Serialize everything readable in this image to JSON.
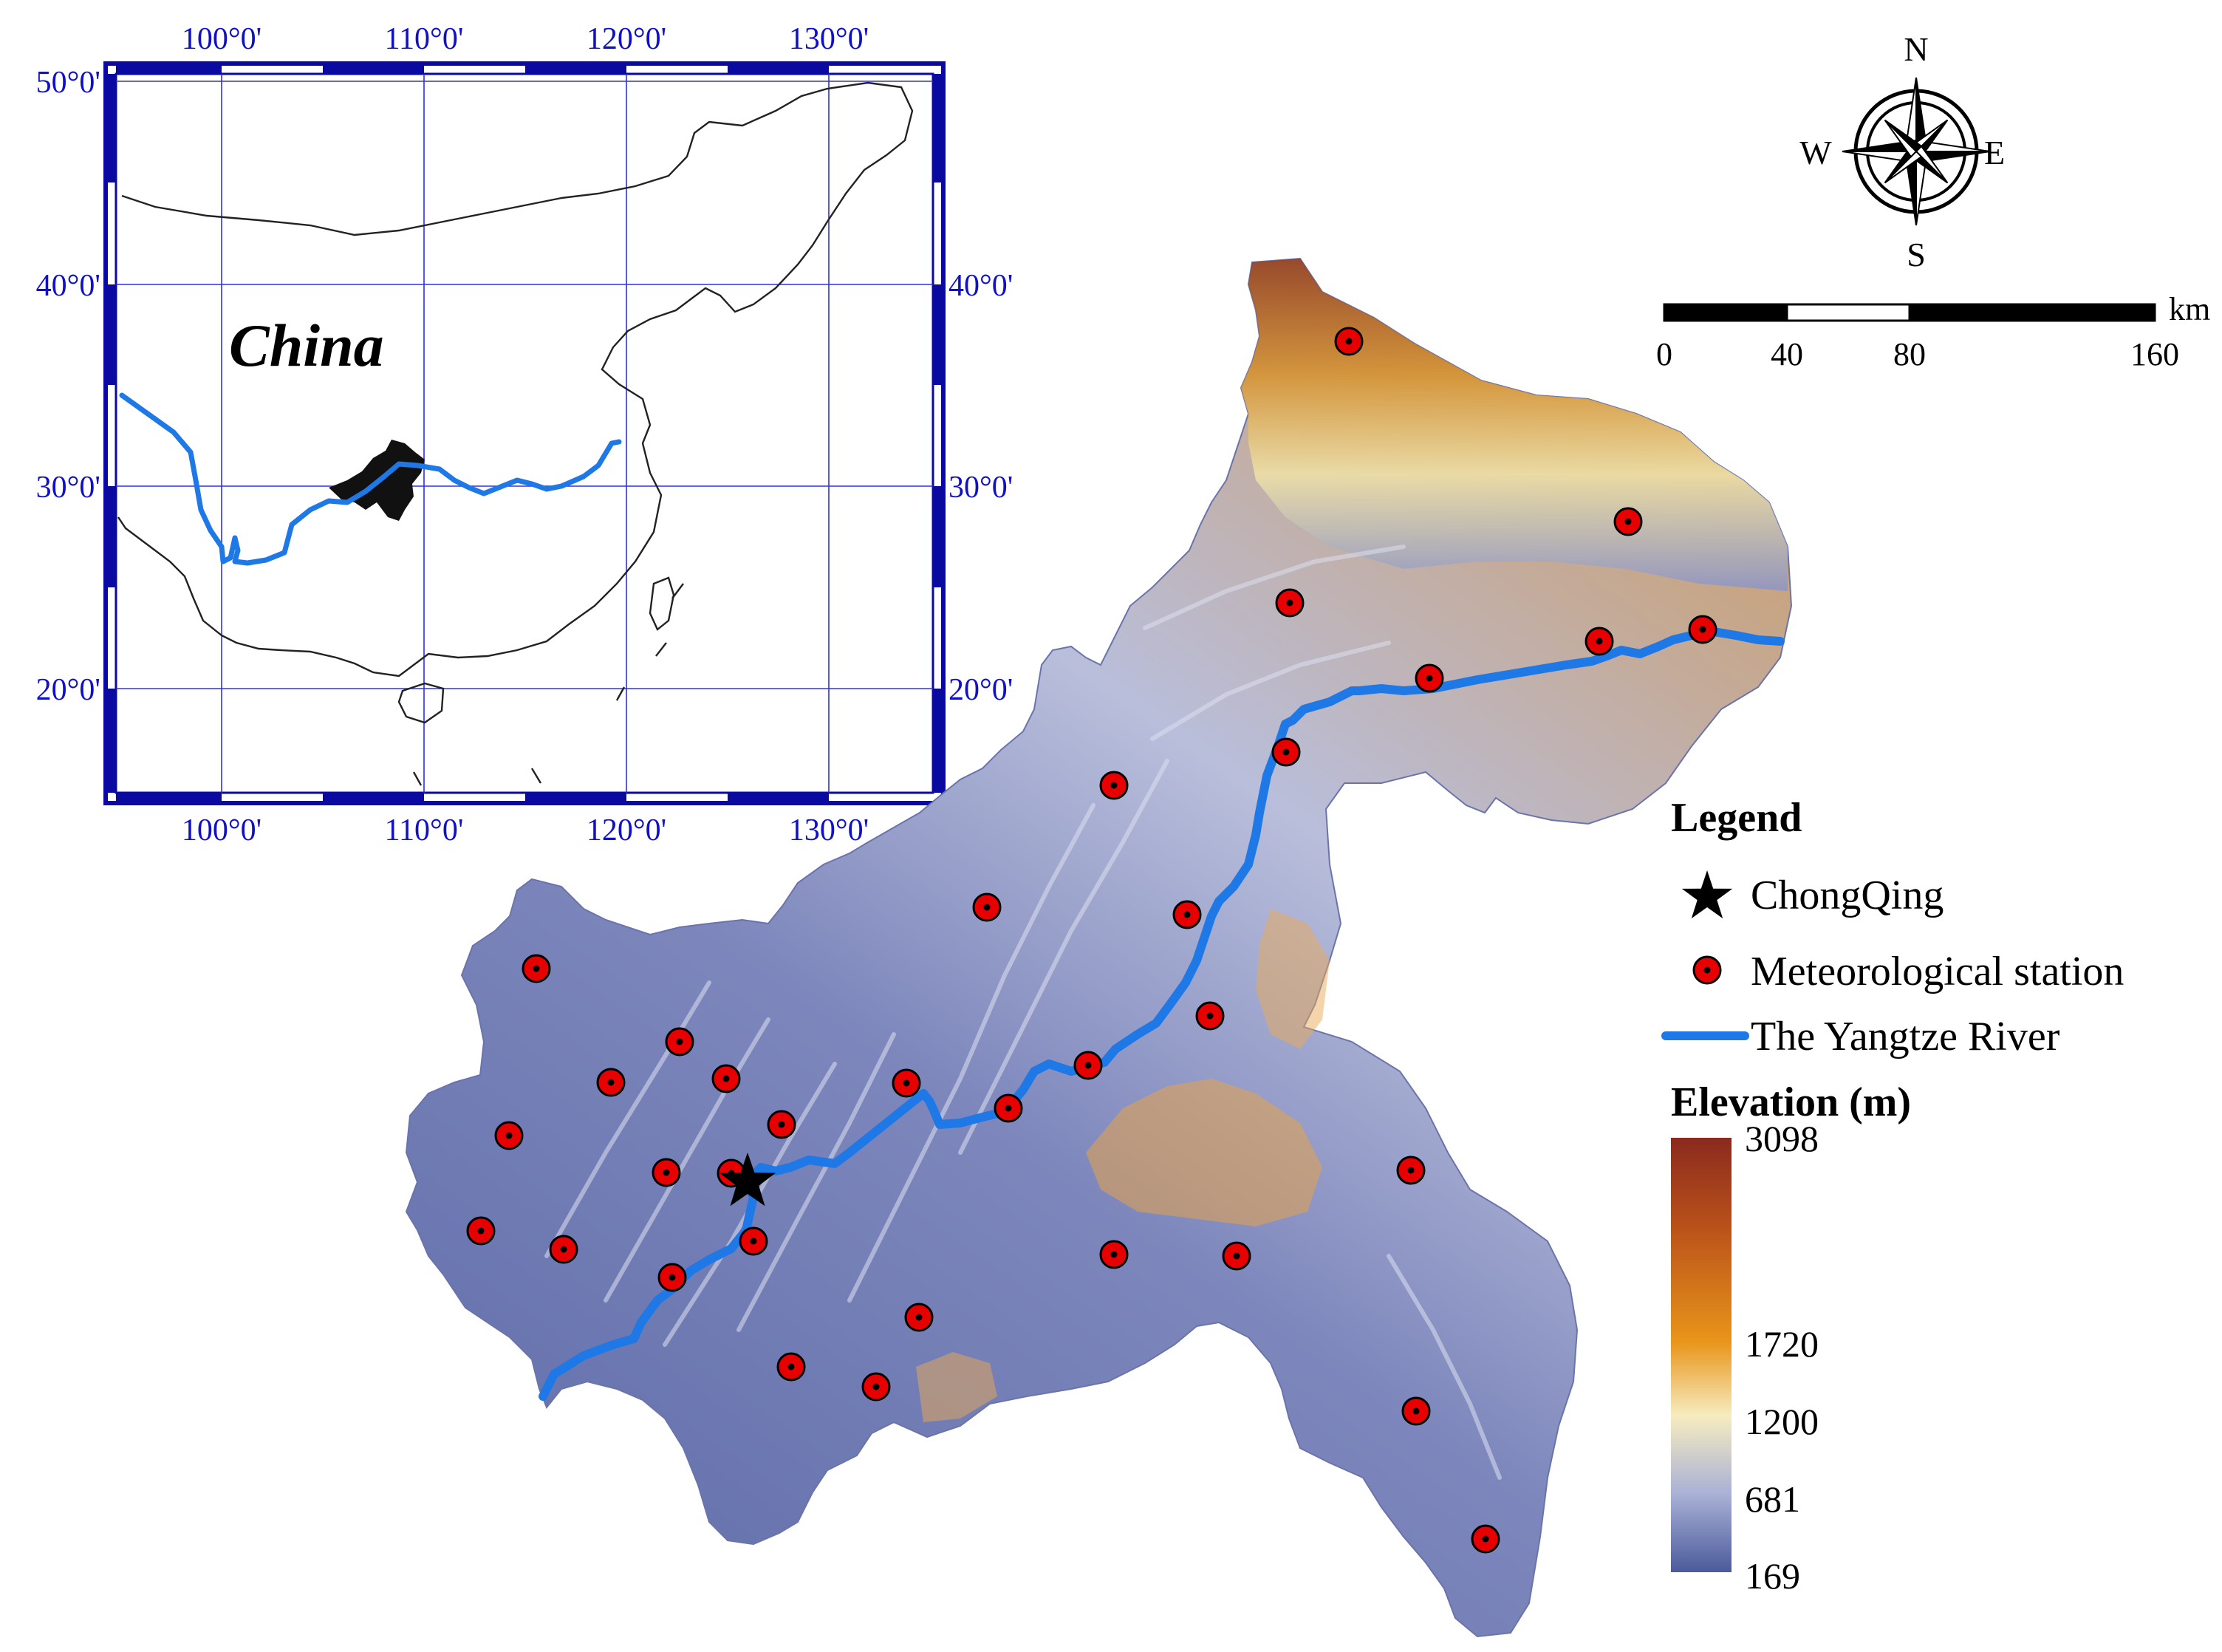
{
  "inset": {
    "title": "China",
    "top_lon_labels": [
      "100°0'",
      "110°0'",
      "120°0'",
      "130°0'"
    ],
    "bottom_lon_labels": [
      "100°0'",
      "110°0'",
      "120°0'",
      "130°0'"
    ],
    "left_lat_labels": [
      "50°0'",
      "40°0'",
      "30°0'",
      "20°0'"
    ],
    "right_lat_labels": [
      "40°0'",
      "30°0'",
      "20°0'"
    ],
    "label_color": "#1010c8",
    "frame_color": "#0a0aa0",
    "grid_color": "#3030e0"
  },
  "compass": {
    "n": "N",
    "s": "S",
    "e": "E",
    "w": "W"
  },
  "scale_bar": {
    "unit": "km",
    "ticks": [
      "0",
      "40",
      "80",
      "160"
    ]
  },
  "legend": {
    "title": "Legend",
    "items": [
      {
        "label": "ChongQing",
        "symbol": "star-icon"
      },
      {
        "label": "Meteorological station",
        "symbol": "station-dot-icon"
      },
      {
        "label": "The Yangtze River",
        "symbol": "river-line-icon"
      }
    ]
  },
  "elevation": {
    "title": "Elevation (m)",
    "ticks": [
      "3098",
      "1720",
      "1200",
      "681",
      "169"
    ],
    "colors": [
      "#8a2a1e",
      "#d67d12",
      "#f6ecc0",
      "#a9b1d6",
      "#4b5a9c"
    ]
  },
  "colors": {
    "river": "#1e78e6",
    "station_fill": "#e60000",
    "station_dot": "#000000"
  }
}
